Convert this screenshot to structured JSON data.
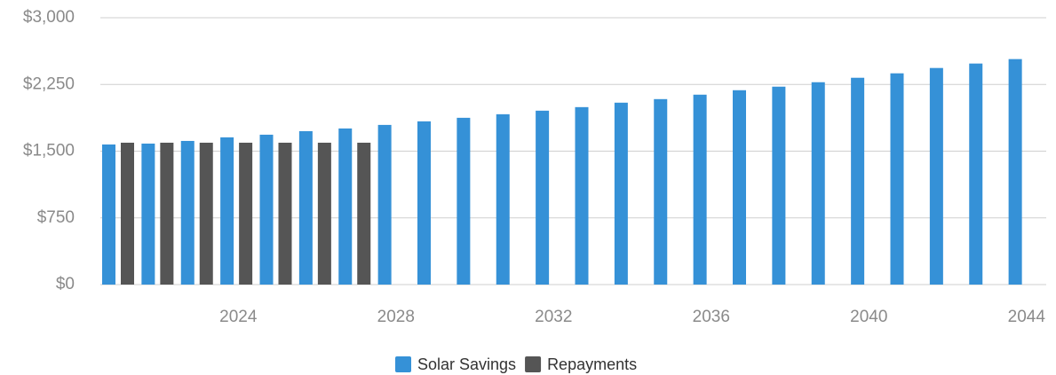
{
  "chart_data": {
    "type": "bar",
    "categories": [
      null,
      null,
      null,
      "2024",
      null,
      null,
      null,
      "2028",
      null,
      null,
      null,
      "2032",
      null,
      null,
      null,
      "2036",
      null,
      null,
      null,
      "2040",
      null,
      null,
      null,
      "2044"
    ],
    "series": [
      {
        "name": "Solar Savings",
        "color": "#3591d7",
        "values": [
          1575,
          1585,
          1615,
          1655,
          1685,
          1725,
          1755,
          1795,
          1835,
          1875,
          1915,
          1955,
          1995,
          2045,
          2085,
          2135,
          2185,
          2225,
          2275,
          2325,
          2375,
          2435,
          2485,
          2535
        ]
      },
      {
        "name": "Repayments",
        "color": "#555555",
        "values": [
          1595,
          1595,
          1595,
          1595,
          1595,
          1595,
          1595,
          null,
          null,
          null,
          null,
          null,
          null,
          null,
          null,
          null,
          null,
          null,
          null,
          null,
          null,
          null,
          null,
          null
        ]
      }
    ],
    "ylim": [
      0,
      3000
    ],
    "yticks": [
      {
        "value": 0,
        "label": "$0"
      },
      {
        "value": 750,
        "label": "$750"
      },
      {
        "value": 1500,
        "label": "$1,500"
      },
      {
        "value": 2250,
        "label": "$2,250"
      },
      {
        "value": 3000,
        "label": "$3,000"
      }
    ],
    "grid": true,
    "legend": "bottom"
  }
}
